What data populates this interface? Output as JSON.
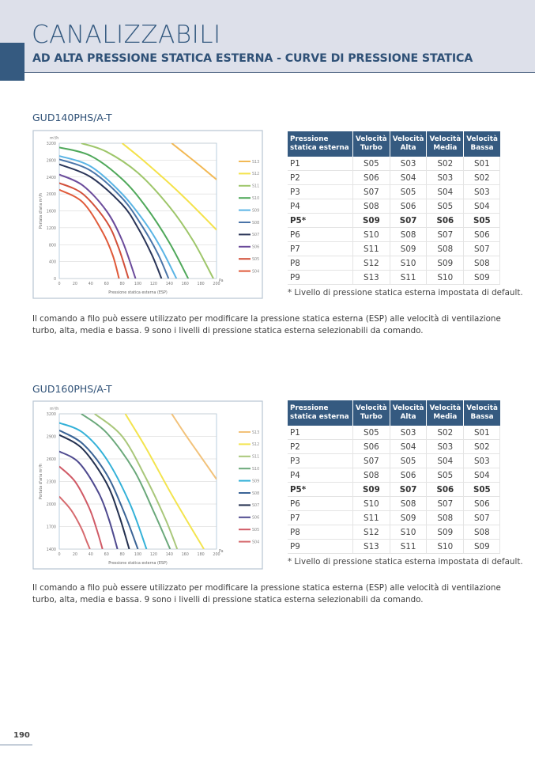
{
  "header": {
    "title": "CANALIZZABILI",
    "subtitle": "AD ALTA PRESSIONE STATICA ESTERNA - CURVE DI PRESSIONE STATICA"
  },
  "sections": [
    {
      "model": "GUD140PHS/A-T",
      "table": {
        "headers": [
          "Pressione statica esterna",
          "Velocità Turbo",
          "Velocità Alta",
          "Velocità Media",
          "Velocità Bassa"
        ],
        "rows": [
          [
            "P1",
            "S05",
            "S03",
            "S02",
            "S01"
          ],
          [
            "P2",
            "S06",
            "S04",
            "S03",
            "S02"
          ],
          [
            "P3",
            "S07",
            "S05",
            "S04",
            "S03"
          ],
          [
            "P4",
            "S08",
            "S06",
            "S05",
            "S04"
          ],
          [
            "P5*",
            "S09",
            "S07",
            "S06",
            "S05"
          ],
          [
            "P6",
            "S10",
            "S08",
            "S07",
            "S06"
          ],
          [
            "P7",
            "S11",
            "S09",
            "S08",
            "S07"
          ],
          [
            "P8",
            "S12",
            "S10",
            "S09",
            "S08"
          ],
          [
            "P9",
            "S13",
            "S11",
            "S10",
            "S09"
          ]
        ],
        "bold_row": 4
      },
      "note": "* Livello di pressione statica esterna impostata di default.",
      "paragraph_lines": [
        "Il comando a filo può essere utilizzato per modificare la pressione statica esterna (ESP) alle velocità di ventilazione",
        "turbo, alta, media e bassa. 9 sono i livelli di pressione statica esterna selezionabili da comando."
      ]
    },
    {
      "model": "GUD160PHS/A-T",
      "table": {
        "headers": [
          "Pressione statica esterna",
          "Velocità Turbo",
          "Velocità Alta",
          "Velocità Media",
          "Velocità Bassa"
        ],
        "rows": [
          [
            "P1",
            "S05",
            "S03",
            "S02",
            "S01"
          ],
          [
            "P2",
            "S06",
            "S04",
            "S03",
            "S02"
          ],
          [
            "P3",
            "S07",
            "S05",
            "S04",
            "S03"
          ],
          [
            "P4",
            "S08",
            "S06",
            "S05",
            "S04"
          ],
          [
            "P5*",
            "S09",
            "S07",
            "S06",
            "S05"
          ],
          [
            "P6",
            "S10",
            "S08",
            "S07",
            "S06"
          ],
          [
            "P7",
            "S11",
            "S09",
            "S08",
            "S07"
          ],
          [
            "P8",
            "S12",
            "S10",
            "S09",
            "S08"
          ],
          [
            "P9",
            "S13",
            "S11",
            "S10",
            "S09"
          ]
        ],
        "bold_row": 4
      },
      "note": "* Livello di pressione statica esterna impostata di default.",
      "paragraph_lines": [
        "Il comando a filo può essere utilizzato per modificare la pressione statica esterna (ESP) alle velocità di ventilazione",
        "turbo, alta, media e bassa. 9 sono i livelli di pressione statica esterna selezionabili da comando."
      ]
    }
  ],
  "page_number": "190",
  "chart_data": [
    {
      "type": "line",
      "title": "GUD140PHS/A-T",
      "xlabel": "Pressione statica esterna (ESP)",
      "ylabel": "Portata d'aria m³/h",
      "x_unit": "Pa",
      "y_unit": "m³/h",
      "xlim": [
        0,
        200
      ],
      "ylim": [
        0,
        3200
      ],
      "x_ticks": [
        "0",
        "20",
        "40",
        "60",
        "80",
        "100",
        "120",
        "140",
        "160",
        "180",
        "200"
      ],
      "y_ticks": [
        "0",
        "400",
        "800",
        "1200",
        "1600",
        "2000",
        "2400",
        "2800",
        "3200"
      ],
      "grid": true,
      "legend_position": "right",
      "series": [
        {
          "name": "S13",
          "color": "#f2b955",
          "x": [
            143,
            160,
            180,
            200
          ],
          "y": [
            3200,
            2950,
            2650,
            2340
          ]
        },
        {
          "name": "S12",
          "color": "#f4e24a",
          "x": [
            80,
            100,
            120,
            140,
            160,
            180,
            200
          ],
          "y": [
            3200,
            2900,
            2580,
            2250,
            1900,
            1530,
            1150
          ]
        },
        {
          "name": "S11",
          "color": "#9ec66a",
          "x": [
            28,
            60,
            100,
            140,
            170,
            196
          ],
          "y": [
            3200,
            3000,
            2500,
            1700,
            900,
            0
          ]
        },
        {
          "name": "S10",
          "color": "#4fa85a",
          "x": [
            0,
            40,
            80,
            110,
            140,
            164
          ],
          "y": [
            3100,
            2900,
            2350,
            1700,
            850,
            0
          ]
        },
        {
          "name": "S09",
          "color": "#5ab4e5",
          "x": [
            0,
            40,
            80,
            110,
            130,
            149
          ],
          "y": [
            2900,
            2650,
            2000,
            1300,
            700,
            0
          ]
        },
        {
          "name": "S08",
          "color": "#4a74a8",
          "x": [
            0,
            40,
            80,
            105,
            125,
            139
          ],
          "y": [
            2820,
            2550,
            1900,
            1250,
            600,
            0
          ]
        },
        {
          "name": "S07",
          "color": "#2a3558",
          "x": [
            0,
            40,
            80,
            100,
            118,
            130
          ],
          "y": [
            2700,
            2400,
            1750,
            1200,
            550,
            0
          ]
        },
        {
          "name": "S06",
          "color": "#6b4b9b",
          "x": [
            0,
            30,
            60,
            80,
            97
          ],
          "y": [
            2460,
            2200,
            1600,
            900,
            0
          ]
        },
        {
          "name": "S05",
          "color": "#d2503a",
          "x": [
            0,
            30,
            60,
            75,
            88
          ],
          "y": [
            2260,
            2000,
            1350,
            750,
            0
          ]
        },
        {
          "name": "S04",
          "color": "#e05a3a",
          "x": [
            0,
            30,
            55,
            68,
            76
          ],
          "y": [
            2100,
            1800,
            1100,
            550,
            0
          ]
        }
      ]
    },
    {
      "type": "line",
      "title": "GUD160PHS/A-T",
      "xlabel": "Pressione statica esterna (ESP)",
      "ylabel": "Portata d'aria m³/h",
      "x_unit": "Pa",
      "y_unit": "m³/h",
      "xlim": [
        0,
        200
      ],
      "ylim": [
        1400,
        3200
      ],
      "x_ticks": [
        "0",
        "20",
        "40",
        "60",
        "80",
        "100",
        "120",
        "140",
        "160",
        "180",
        "200"
      ],
      "y_ticks": [
        "1400",
        "1700",
        "2000",
        "2300",
        "2600",
        "2900",
        "3200"
      ],
      "grid": true,
      "legend_position": "right",
      "series": [
        {
          "name": "S13",
          "color": "#f2c27a",
          "x": [
            143,
            160,
            180,
            200
          ],
          "y": [
            3200,
            2930,
            2630,
            2330
          ]
        },
        {
          "name": "S12",
          "color": "#f3e44e",
          "x": [
            84,
            110,
            140,
            160,
            184
          ],
          "y": [
            3200,
            2750,
            2180,
            1820,
            1400
          ]
        },
        {
          "name": "S11",
          "color": "#a9c77a",
          "x": [
            45,
            80,
            110,
            135,
            150
          ],
          "y": [
            3200,
            2900,
            2350,
            1800,
            1400
          ]
        },
        {
          "name": "S10",
          "color": "#6aa87a",
          "x": [
            28,
            60,
            95,
            120,
            141
          ],
          "y": [
            3200,
            2950,
            2450,
            1900,
            1400
          ]
        },
        {
          "name": "S09",
          "color": "#33b1d8",
          "x": [
            0,
            30,
            60,
            90,
            111
          ],
          "y": [
            3080,
            2950,
            2600,
            2000,
            1400
          ]
        },
        {
          "name": "S08",
          "color": "#3b6496",
          "x": [
            0,
            30,
            60,
            82,
            100
          ],
          "y": [
            2980,
            2800,
            2400,
            1900,
            1400
          ]
        },
        {
          "name": "S07",
          "color": "#23304f",
          "x": [
            0,
            30,
            60,
            76,
            89
          ],
          "y": [
            2920,
            2730,
            2280,
            1850,
            1400
          ]
        },
        {
          "name": "S06",
          "color": "#4f4a8f",
          "x": [
            0,
            25,
            50,
            63,
            74
          ],
          "y": [
            2700,
            2550,
            2150,
            1800,
            1400
          ]
        },
        {
          "name": "S05",
          "color": "#d05a66",
          "x": [
            0,
            20,
            38,
            48,
            55
          ],
          "y": [
            2500,
            2300,
            1950,
            1650,
            1400
          ]
        },
        {
          "name": "S04",
          "color": "#d66a6e",
          "x": [
            0,
            15,
            28,
            35,
            39
          ],
          "y": [
            2100,
            1920,
            1680,
            1500,
            1400
          ]
        }
      ]
    }
  ]
}
